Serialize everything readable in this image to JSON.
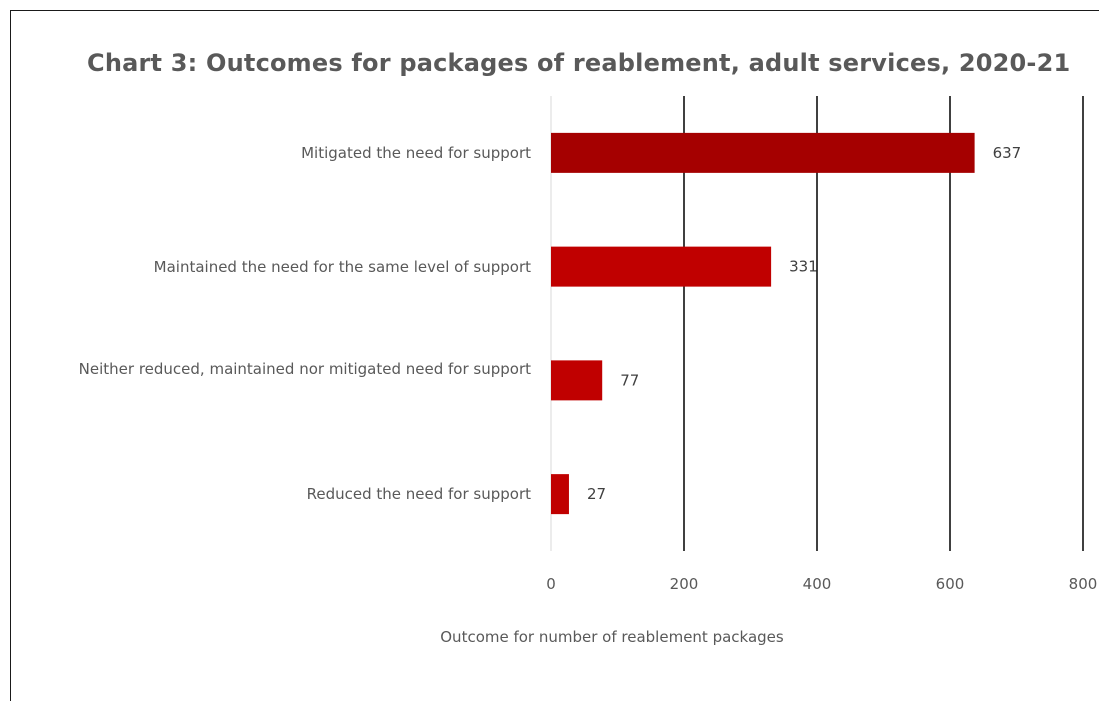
{
  "chart_data": {
    "type": "bar",
    "orientation": "horizontal",
    "title": "Chart 3: Outcomes for packages of reablement, adult services, 2020-21",
    "categories": [
      "Mitigated the need for support",
      "Maintained the need for the same level of support",
      "Neither reduced, maintained nor mitigated need for support",
      "Reduced the need for support"
    ],
    "values": [
      637,
      331,
      77,
      27
    ],
    "xlabel": "Outcome for number of reablement packages",
    "ylabel": "",
    "xlim": [
      0,
      800
    ],
    "xticks": [
      "0",
      "200",
      "400",
      "600",
      "800"
    ],
    "grid": true,
    "legend": "none",
    "colors": [
      "#a50000",
      "#c00000",
      "#c00000",
      "#c00000"
    ]
  }
}
